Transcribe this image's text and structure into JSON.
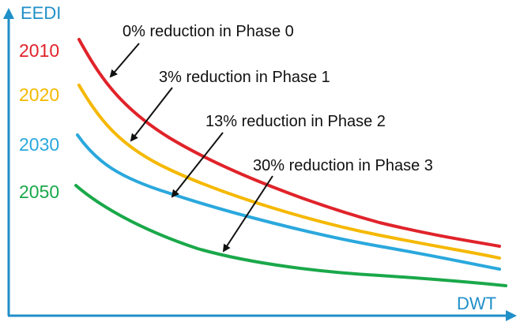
{
  "chart_data": {
    "type": "line",
    "xlabel": "DWT",
    "ylabel": "EEDI",
    "grid": false,
    "axis_color": "#1f8fc8",
    "series": [
      {
        "name": "2010",
        "color": "#e0232a"
      },
      {
        "name": "2020",
        "color": "#f5b800"
      },
      {
        "name": "2030",
        "color": "#2aa8dd"
      },
      {
        "name": "2050",
        "color": "#1aa84a"
      }
    ],
    "annotations": [
      {
        "text": "0% reduction in Phase 0"
      },
      {
        "text": "3% reduction in Phase 1"
      },
      {
        "text": "13% reduction in Phase 2"
      },
      {
        "text": "30% reduction in Phase 3"
      }
    ]
  }
}
